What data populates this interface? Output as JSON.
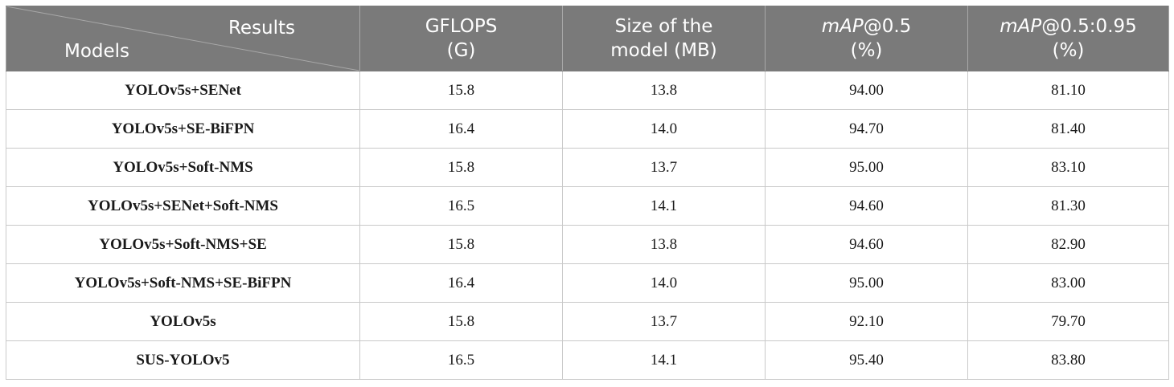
{
  "header": {
    "diag_top": "Results",
    "diag_bottom": "Models",
    "col1": [
      "GFLOPS",
      "(G)"
    ],
    "col2": [
      "Size of the",
      "model (MB)"
    ],
    "col3": {
      "italic": "mAP",
      "rest": "@0.5",
      "unit": "(%)"
    },
    "col4": {
      "italic": "mAP",
      "rest": "@0.5:0.95",
      "unit": "(%)"
    }
  },
  "rows": [
    {
      "model": "YOLOv5s+SENet",
      "gflops": "15.8",
      "size": "13.8",
      "map50": "94.00",
      "map5095": "81.10"
    },
    {
      "model": "YOLOv5s+SE-BiFPN",
      "gflops": "16.4",
      "size": "14.0",
      "map50": "94.70",
      "map5095": "81.40"
    },
    {
      "model": "YOLOv5s+Soft-NMS",
      "gflops": "15.8",
      "size": "13.7",
      "map50": "95.00",
      "map5095": "83.10"
    },
    {
      "model": "YOLOv5s+SENet+Soft-NMS",
      "gflops": "16.5",
      "size": "14.1",
      "map50": "94.60",
      "map5095": "81.30"
    },
    {
      "model": "YOLOv5s+Soft-NMS+SE",
      "gflops": "15.8",
      "size": "13.8",
      "map50": "94.60",
      "map5095": "82.90"
    },
    {
      "model": "YOLOv5s+Soft-NMS+SE-BiFPN",
      "gflops": "16.4",
      "size": "14.0",
      "map50": "95.00",
      "map5095": "83.00"
    },
    {
      "model": "YOLOv5s",
      "gflops": "15.8",
      "size": "13.7",
      "map50": "92.10",
      "map5095": "79.70"
    },
    {
      "model": "SUS-YOLOv5",
      "gflops": "16.5",
      "size": "14.1",
      "map50": "95.40",
      "map5095": "83.80"
    }
  ]
}
